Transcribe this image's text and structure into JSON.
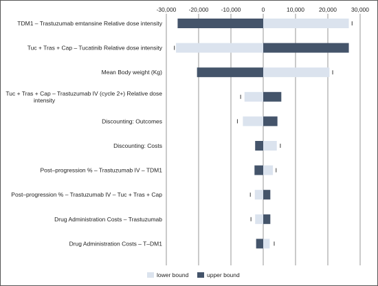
{
  "chart_data": {
    "type": "bar",
    "orientation": "horizontal-tornado",
    "title": "",
    "xlabel": "",
    "ylabel": "",
    "xlim": [
      -30000,
      30000
    ],
    "x_ticks": [
      -30000,
      -20000,
      -10000,
      0,
      10000,
      20000,
      30000
    ],
    "x_tick_labels": [
      "-30,000",
      "-20,000",
      "-10,000",
      "0",
      "10,000",
      "20,000",
      "30,000"
    ],
    "x_axis_position": "top",
    "grid": true,
    "legend_position": "bottom-center",
    "colors": {
      "lower": "#dbe3ee",
      "upper": "#44546a"
    },
    "categories": [
      "TDM1 – Trastuzumab emtansine Relative dose intensity",
      "Tuc + Tras + Cap – Tucatinib Relative dose intensity",
      "Mean Body weight (Kg)",
      "Tuc + Tras + Cap – Trastuzumab IV (cycle 2+) Relative dose intensity",
      "Discounting: Outcomes",
      "Discounting: Costs",
      "Post–progression % – Trastuzumab IV – TDM1",
      "Post–progression % – Trastuzumab IV – Tuc + Tras + Cap",
      "Drug Administration Costs – Trastuzumab",
      "Drug Administration Costs – T–DM1"
    ],
    "category_lines": [
      [
        "TDM1 – Trastuzumab emtansine Relative dose intensity"
      ],
      [
        "Tuc + Tras + Cap – Tucatinib Relative dose intensity"
      ],
      [
        "Mean Body weight (Kg)"
      ],
      [
        "Tuc + Tras + Cap – Trastuzumab IV (cycle 2+) Relative dose",
        "intensity"
      ],
      [
        "Discounting: Outcomes"
      ],
      [
        "Discounting: Costs"
      ],
      [
        "Post–progression % – Trastuzumab IV – TDM1"
      ],
      [
        "Post–progression % – Trastuzumab IV – Tuc + Tras + Cap"
      ],
      [
        "Drug Administration Costs – Trastuzumab"
      ],
      [
        "Drug Administration Costs – T–DM1"
      ]
    ],
    "series": [
      {
        "name": "lower bound",
        "values": [
          26500,
          -27000,
          20500,
          -5800,
          -6300,
          4200,
          3000,
          -2600,
          -2500,
          2000
        ]
      },
      {
        "name": "upper bound",
        "values": [
          -26500,
          26500,
          -20500,
          5600,
          4400,
          -2500,
          -2700,
          2200,
          2200,
          -2200
        ]
      }
    ],
    "base_markers": [
      27500,
      -27500,
      21500,
      -7000,
      -8000,
      5300,
      4000,
      -4000,
      -3800,
      3400
    ]
  }
}
